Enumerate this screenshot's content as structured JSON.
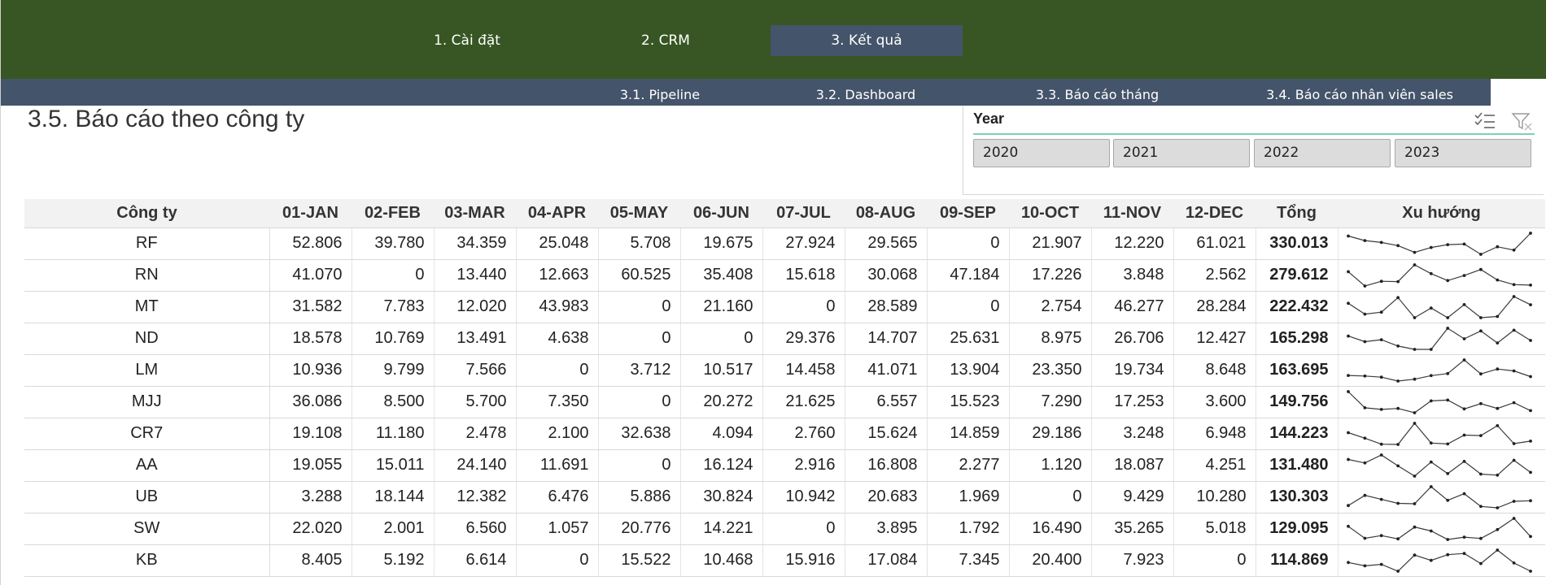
{
  "nav": {
    "tabs": [
      {
        "label": "1. Cài đặt",
        "active": false
      },
      {
        "label": "2. CRM",
        "active": false
      },
      {
        "label": "3. Kết quả",
        "active": true
      }
    ],
    "subtabs": [
      "3.1. Pipeline",
      "3.2. Dashboard",
      "3.3. Báo cáo tháng",
      "3.4. Báo cáo nhân viên sales"
    ]
  },
  "page": {
    "title": "3.5. Báo cáo theo công ty"
  },
  "slicer": {
    "title": "Year",
    "icons": [
      "multi-select-icon",
      "clear-filter-icon"
    ],
    "options": [
      "2020",
      "2021",
      "2022",
      "2023"
    ]
  },
  "table": {
    "headers": [
      "Công ty",
      "01-JAN",
      "02-FEB",
      "03-MAR",
      "04-APR",
      "05-MAY",
      "06-JUN",
      "07-JUL",
      "08-AUG",
      "09-SEP",
      "10-OCT",
      "11-NOV",
      "12-DEC",
      "Tổng",
      "Xu hướng"
    ],
    "rows": [
      {
        "company": "RF",
        "months": [
          "52.806",
          "39.780",
          "34.359",
          "25.048",
          "5.708",
          "19.675",
          "27.924",
          "29.565",
          "0",
          "21.907",
          "12.220",
          "61.021"
        ],
        "total": "330.013",
        "trend": [
          52806,
          39780,
          34359,
          25048,
          5708,
          19675,
          27924,
          29565,
          0,
          21907,
          12220,
          61021
        ]
      },
      {
        "company": "RN",
        "months": [
          "41.070",
          "0",
          "13.440",
          "12.663",
          "60.525",
          "35.408",
          "15.618",
          "30.068",
          "47.184",
          "17.226",
          "3.848",
          "2.562"
        ],
        "total": "279.612",
        "trend": [
          41070,
          0,
          13440,
          12663,
          60525,
          35408,
          15618,
          30068,
          47184,
          17226,
          3848,
          2562
        ]
      },
      {
        "company": "MT",
        "months": [
          "31.582",
          "7.783",
          "12.020",
          "43.983",
          "0",
          "21.160",
          "0",
          "28.589",
          "0",
          "2.754",
          "46.277",
          "28.284"
        ],
        "total": "222.432",
        "trend": [
          31582,
          7783,
          12020,
          43983,
          0,
          21160,
          0,
          28589,
          0,
          2754,
          46277,
          28284
        ]
      },
      {
        "company": "ND",
        "months": [
          "18.578",
          "10.769",
          "13.491",
          "4.638",
          "0",
          "0",
          "29.376",
          "14.707",
          "25.631",
          "8.975",
          "26.706",
          "12.427"
        ],
        "total": "165.298",
        "trend": [
          18578,
          10769,
          13491,
          4638,
          0,
          0,
          29376,
          14707,
          25631,
          8975,
          26706,
          12427
        ]
      },
      {
        "company": "LM",
        "months": [
          "10.936",
          "9.799",
          "7.566",
          "0",
          "3.712",
          "10.517",
          "14.458",
          "41.071",
          "13.904",
          "23.350",
          "19.734",
          "8.648"
        ],
        "total": "163.695",
        "trend": [
          10936,
          9799,
          7566,
          0,
          3712,
          10517,
          14458,
          41071,
          13904,
          23350,
          19734,
          8648
        ]
      },
      {
        "company": "MJJ",
        "months": [
          "36.086",
          "8.500",
          "5.700",
          "7.350",
          "0",
          "20.272",
          "21.625",
          "6.557",
          "15.523",
          "7.290",
          "17.253",
          "3.600"
        ],
        "total": "149.756",
        "trend": [
          36086,
          8500,
          5700,
          7350,
          0,
          20272,
          21625,
          6557,
          15523,
          7290,
          17253,
          3600
        ]
      },
      {
        "company": "CR7",
        "months": [
          "19.108",
          "11.180",
          "2.478",
          "2.100",
          "32.638",
          "4.094",
          "2.760",
          "15.624",
          "14.859",
          "29.186",
          "3.248",
          "6.948"
        ],
        "total": "144.223",
        "trend": [
          19108,
          11180,
          2478,
          2100,
          32638,
          4094,
          2760,
          15624,
          14859,
          29186,
          3248,
          6948
        ]
      },
      {
        "company": "AA",
        "months": [
          "19.055",
          "15.011",
          "24.140",
          "11.691",
          "0",
          "16.124",
          "2.916",
          "16.808",
          "2.277",
          "1.120",
          "18.087",
          "4.251"
        ],
        "total": "131.480",
        "trend": [
          19055,
          15011,
          24140,
          11691,
          0,
          16124,
          2916,
          16808,
          2277,
          1120,
          18087,
          4251
        ]
      },
      {
        "company": "UB",
        "months": [
          "3.288",
          "18.144",
          "12.382",
          "6.476",
          "5.886",
          "30.824",
          "10.942",
          "20.683",
          "1.969",
          "0",
          "9.429",
          "10.280"
        ],
        "total": "130.303",
        "trend": [
          3288,
          18144,
          12382,
          6476,
          5886,
          30824,
          10942,
          20683,
          1969,
          0,
          9429,
          10280
        ]
      },
      {
        "company": "SW",
        "months": [
          "22.020",
          "2.001",
          "6.560",
          "1.057",
          "20.776",
          "14.221",
          "0",
          "3.895",
          "1.792",
          "16.490",
          "35.265",
          "5.018"
        ],
        "total": "129.095",
        "trend": [
          22020,
          2001,
          6560,
          1057,
          20776,
          14221,
          0,
          3895,
          1792,
          16490,
          35265,
          5018
        ]
      },
      {
        "company": "KB",
        "months": [
          "8.405",
          "5.192",
          "6.614",
          "0",
          "15.522",
          "10.468",
          "15.916",
          "17.084",
          "7.345",
          "20.400",
          "7.923",
          "0"
        ],
        "total": "114.869",
        "trend": [
          8405,
          5192,
          6614,
          0,
          15522,
          10468,
          15916,
          17084,
          7345,
          20400,
          7923,
          0
        ]
      }
    ]
  }
}
